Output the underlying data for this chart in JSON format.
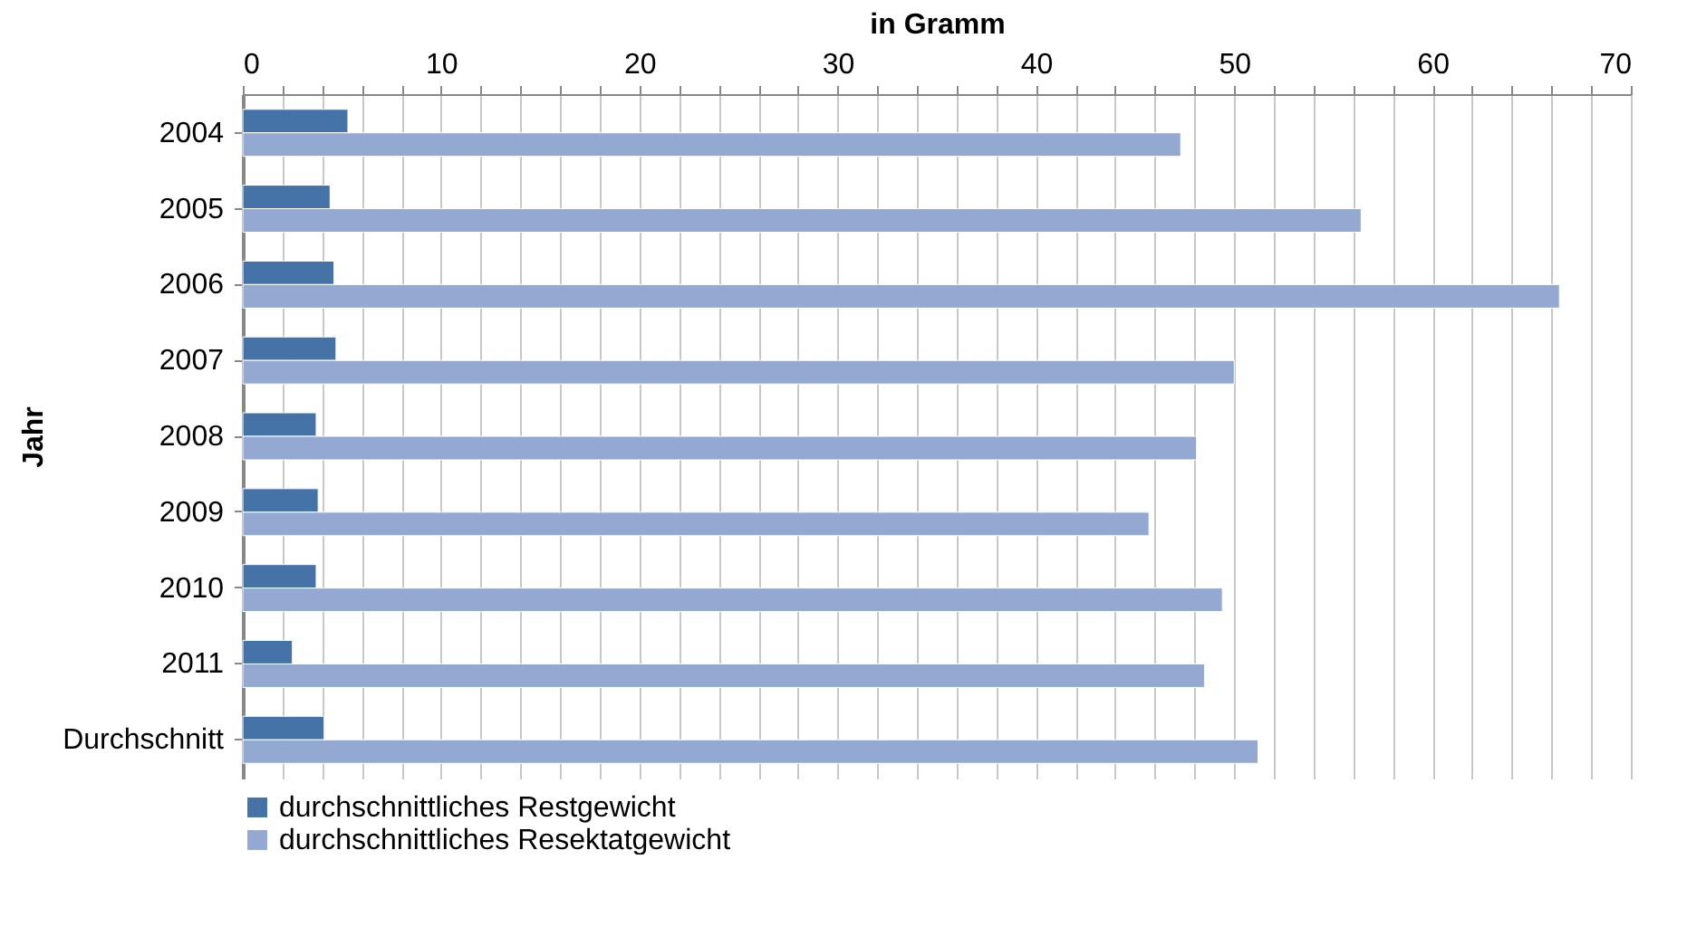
{
  "chart_data": {
    "type": "bar",
    "orientation": "horizontal",
    "xlabel": "in Gramm",
    "ylabel": "Jahr",
    "categories": [
      "2004",
      "2005",
      "2006",
      "2007",
      "2008",
      "2009",
      "2010",
      "2011",
      "Durchschnitt"
    ],
    "series": [
      {
        "name": "durchschnittliches Restgewicht",
        "color": "#4572a7",
        "values": [
          5.3,
          4.4,
          4.6,
          4.7,
          3.7,
          3.8,
          3.7,
          2.5,
          4.1
        ]
      },
      {
        "name": "durchschnittliches Resektatgewicht",
        "color": "#94a9d2",
        "values": [
          47.3,
          56.4,
          66.4,
          50.0,
          48.1,
          45.7,
          49.4,
          48.5,
          51.2
        ]
      }
    ],
    "xlim": [
      0,
      70
    ],
    "xticks": [
      0,
      {
        "value": 2,
        "label": null
      },
      {
        "value": 4,
        "label": null
      },
      {
        "value": 6,
        "label": null
      },
      {
        "value": 8,
        "label": null
      },
      10,
      {
        "value": 12,
        "label": null
      },
      {
        "value": 14,
        "label": null
      },
      {
        "value": 16,
        "label": null
      },
      {
        "value": 18,
        "label": null
      },
      20,
      {
        "value": 22,
        "label": null
      },
      {
        "value": 24,
        "label": null
      },
      {
        "value": 26,
        "label": null
      },
      {
        "value": 28,
        "label": null
      },
      30,
      {
        "value": 32,
        "label": null
      },
      {
        "value": 34,
        "label": null
      },
      {
        "value": 36,
        "label": null
      },
      {
        "value": 38,
        "label": null
      },
      40,
      {
        "value": 42,
        "label": null
      },
      {
        "value": 44,
        "label": null
      },
      {
        "value": 46,
        "label": null
      },
      {
        "value": 48,
        "label": null
      },
      50,
      {
        "value": 52,
        "label": null
      },
      {
        "value": 54,
        "label": null
      },
      {
        "value": 56,
        "label": null
      },
      {
        "value": 58,
        "label": null
      },
      60,
      {
        "value": 62,
        "label": null
      },
      {
        "value": 64,
        "label": null
      },
      {
        "value": 66,
        "label": null
      },
      {
        "value": 68,
        "label": null
      },
      70
    ],
    "grid": true,
    "legend": "bottom"
  }
}
